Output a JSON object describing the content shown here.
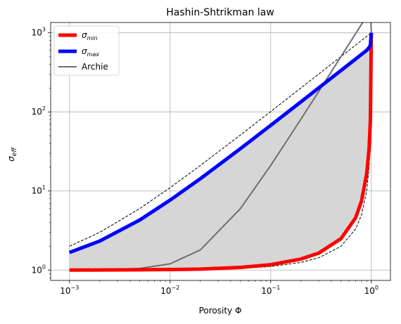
{
  "chart_data": {
    "type": "line",
    "title": "Hashin-Shtrikman law",
    "xlabel": "Porosity Φ",
    "ylabel": "σ",
    "ylabel_sub": "eff",
    "xscale": "log",
    "yscale": "log",
    "xlim": [
      0.00065,
      1.55
    ],
    "ylim": [
      0.74,
      1350
    ],
    "grid": true,
    "legend_position": "top-left",
    "x_ticks": [
      {
        "value": 0.001,
        "base": "10",
        "exp": "−3"
      },
      {
        "value": 0.01,
        "base": "10",
        "exp": "−2"
      },
      {
        "value": 0.1,
        "base": "10",
        "exp": "−1"
      },
      {
        "value": 1,
        "base": "10",
        "exp": "0"
      }
    ],
    "y_ticks": [
      {
        "value": 1,
        "base": "10",
        "exp": "0"
      },
      {
        "value": 10,
        "base": "10",
        "exp": "1"
      },
      {
        "value": 100,
        "base": "10",
        "exp": "2"
      },
      {
        "value": 1000,
        "base": "10",
        "exp": "3"
      }
    ],
    "parameters_note": "",
    "x": [
      0.001,
      0.002,
      0.005,
      0.01,
      0.02,
      0.05,
      0.1,
      0.2,
      0.3,
      0.5,
      0.7,
      0.8,
      0.9,
      0.95,
      0.98,
      1.0
    ],
    "series": [
      {
        "name": "σ",
        "name_sub": "min",
        "color": "#ff0000",
        "style": "solid",
        "width": 5,
        "values": [
          1.0,
          1.003,
          1.008,
          1.015,
          1.03,
          1.08,
          1.17,
          1.38,
          1.64,
          2.5,
          4.6,
          7.5,
          16.5,
          34,
          80,
          1000
        ]
      },
      {
        "name": "σ",
        "name_sub": "max",
        "color": "#0000ff",
        "style": "solid",
        "width": 5,
        "values": [
          1.67,
          2.33,
          4.3,
          7.66,
          14.3,
          34.3,
          67.6,
          134,
          201,
          334,
          467,
          534,
          600,
          651,
          699,
          1000
        ]
      },
      {
        "name": "Archie",
        "color": "#6e6e6e",
        "style": "solid",
        "width": 2,
        "values": [
          1.002,
          1.008,
          1.05,
          1.2,
          1.8,
          5.99,
          21,
          81,
          181,
          501,
          981,
          1281,
          1621,
          1806,
          1921,
          1000
        ]
      }
    ],
    "dashed_bounds": {
      "color": "#000000",
      "upper": [
        2.0,
        3.0,
        6.0,
        11.0,
        21.0,
        51.0,
        101,
        201,
        301,
        501,
        701,
        801,
        901,
        951,
        981,
        1000
      ],
      "lower": [
        1.001,
        1.002,
        1.005,
        1.01,
        1.02,
        1.05,
        1.11,
        1.25,
        1.43,
        2.0,
        3.33,
        5.0,
        10.0,
        20.0,
        50.0,
        1000
      ]
    },
    "fill_between": {
      "between": [
        "σmin",
        "σmax"
      ],
      "color": "#d6d6d6"
    }
  }
}
